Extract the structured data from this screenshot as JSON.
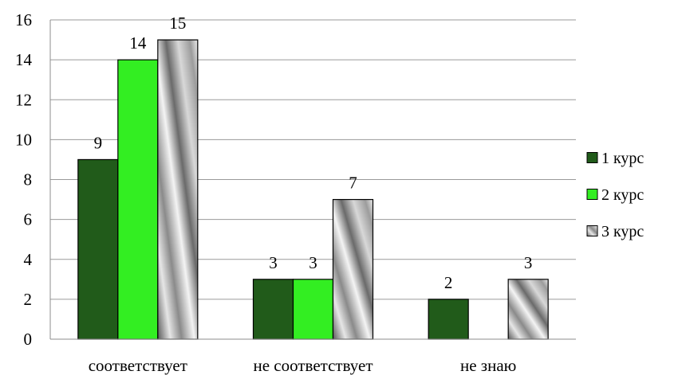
{
  "chart_data": {
    "type": "bar",
    "categories": [
      "соответствует",
      "не соответствует",
      "не знаю"
    ],
    "series": [
      {
        "name": "1 курс",
        "values": [
          9,
          3,
          2
        ],
        "color": "#215b1a",
        "fill": "solid"
      },
      {
        "name": "2 курс",
        "values": [
          14,
          3,
          null
        ],
        "color": "#33ee22",
        "fill": "solid"
      },
      {
        "name": "3 курс",
        "values": [
          15,
          7,
          3
        ],
        "color": "#b4b4b4",
        "fill": "metallic-gradient"
      }
    ],
    "ylim": [
      0,
      16
    ],
    "yticks": [
      "0",
      "2",
      "4",
      "6",
      "8",
      "10",
      "12",
      "14",
      "16"
    ],
    "grid": true,
    "legend_position": "right",
    "title": "",
    "xlabel": "",
    "ylabel": ""
  }
}
